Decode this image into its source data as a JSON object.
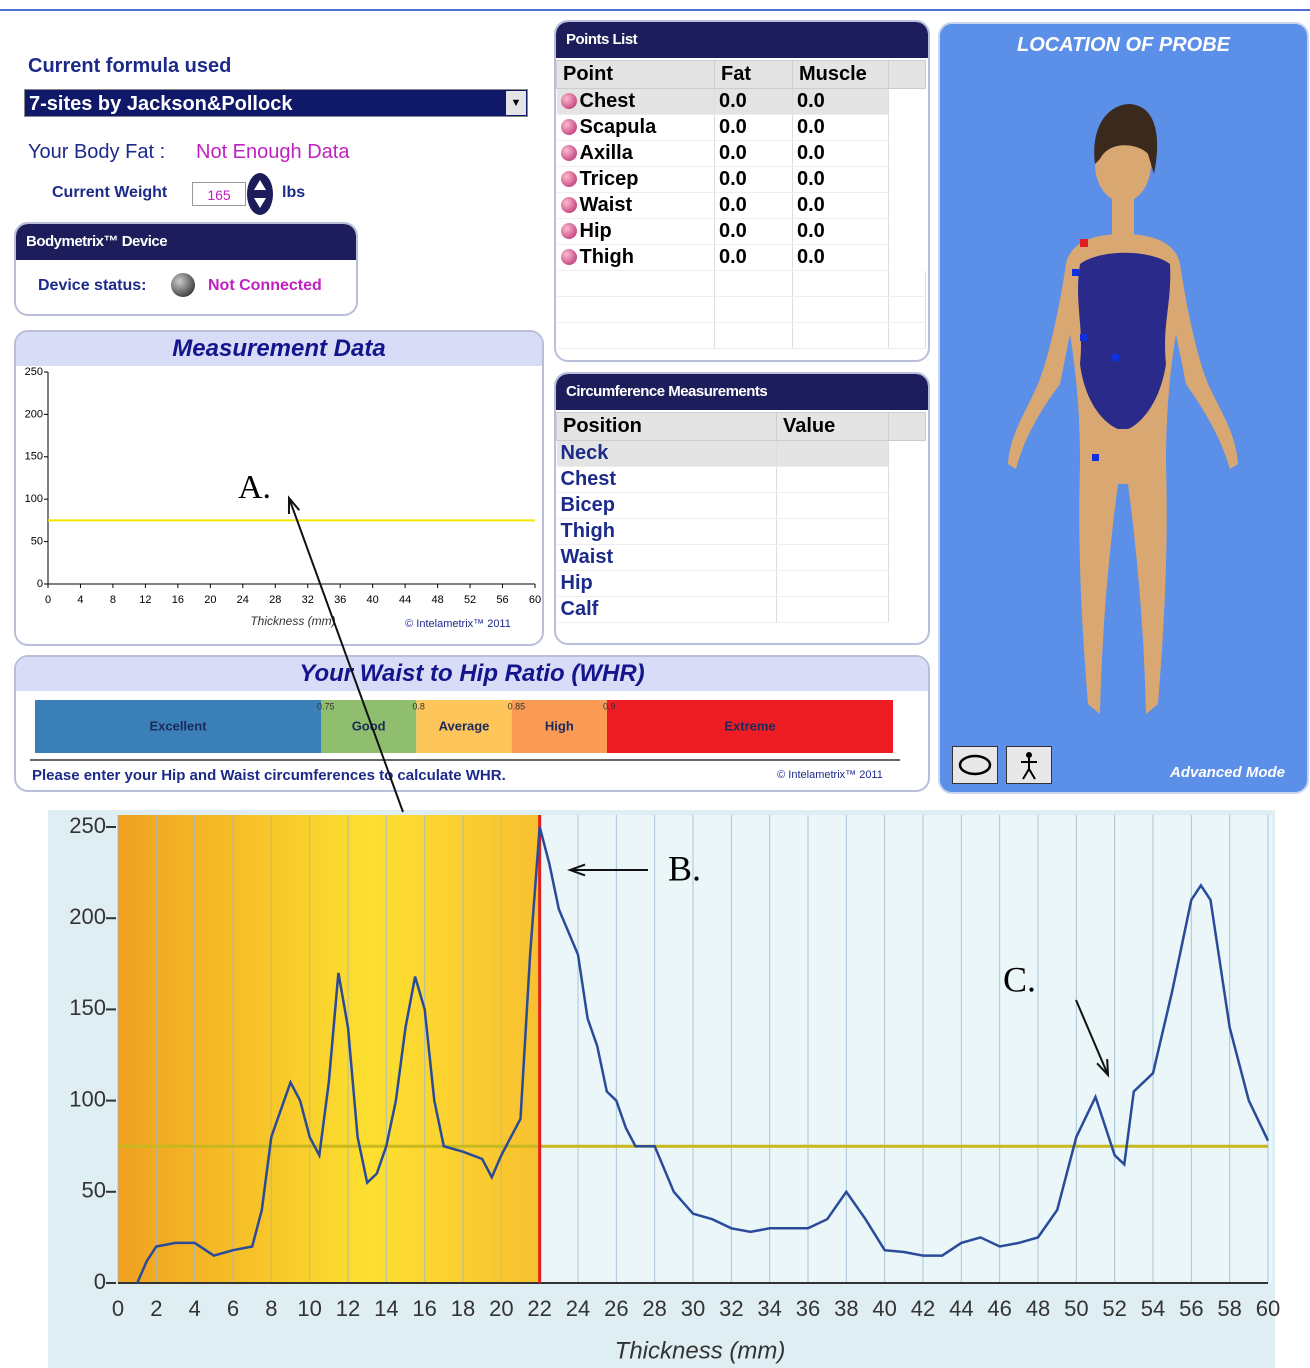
{
  "formula": {
    "label": "Current formula used",
    "selected": "7-sites by Jackson&Pollock"
  },
  "body_fat": {
    "label": "Your Body Fat :",
    "value": "Not Enough Data"
  },
  "weight": {
    "label": "Current Weight",
    "value": 165,
    "unit": "lbs"
  },
  "device": {
    "title": "Bodymetrix™ Device",
    "status_label": "Device status:",
    "status": "Not Connected"
  },
  "points_list": {
    "title": "Points List",
    "columns": [
      "Point",
      "Fat",
      "Muscle"
    ],
    "rows": [
      [
        "Chest",
        "0.0",
        "0.0"
      ],
      [
        "Scapula",
        "0.0",
        "0.0"
      ],
      [
        "Axilla",
        "0.0",
        "0.0"
      ],
      [
        "Tricep",
        "0.0",
        "0.0"
      ],
      [
        "Waist",
        "0.0",
        "0.0"
      ],
      [
        "Hip",
        "0.0",
        "0.0"
      ],
      [
        "Thigh",
        "0.0",
        "0.0"
      ]
    ]
  },
  "circumference": {
    "title": "Circumference Measurements",
    "columns": [
      "Position",
      "Value"
    ],
    "rows": [
      "Neck",
      "Chest",
      "Bicep",
      "Thigh",
      "Waist",
      "Hip",
      "Calf"
    ]
  },
  "probe": {
    "title": "LOCATION OF PROBE",
    "mode": "Advanced Mode"
  },
  "measurement_chart": {
    "type": "line",
    "title": "Measurement Data",
    "xlabel": "Thickness (mm)",
    "copyright": "© Intelametrix™ 2011",
    "xlim": [
      0,
      60
    ],
    "xticks": [
      0,
      4,
      8,
      12,
      16,
      20,
      24,
      28,
      32,
      36,
      40,
      44,
      48,
      52,
      56,
      60
    ],
    "ylim": [
      0,
      250
    ],
    "yticks": [
      0,
      50,
      100,
      150,
      200,
      250
    ],
    "threshold": 75,
    "threshold_color": "#f0e800",
    "annotation": "A."
  },
  "whr": {
    "title": "Your Waist to Hip Ratio (WHR)",
    "xlim": [
      0.6,
      1.05
    ],
    "segments": [
      {
        "name": "Excellent",
        "color": "#3a7fb8"
      },
      {
        "name": "Good",
        "color": "#8fbf6e"
      },
      {
        "name": "Average",
        "color": "#fdc55a"
      },
      {
        "name": "High",
        "color": "#f99a55"
      },
      {
        "name": "Extreme",
        "color": "#ee1c25"
      }
    ],
    "thresholds": [
      0.75,
      0.8,
      0.85,
      0.9
    ],
    "message": "Please enter your Hip and Waist circumferences to calculate WHR.",
    "copyright": "© Intelametrix™ 2011"
  },
  "scan_chart": {
    "type": "line",
    "xlabel": "Thickness (mm)",
    "color": "#2a4a9a",
    "x": [
      1,
      1.5,
      2,
      3,
      4,
      5,
      6,
      7,
      7.5,
      8,
      8.5,
      9,
      9.5,
      10,
      10.5,
      11,
      11.5,
      12,
      12.5,
      13,
      13.5,
      14,
      14.5,
      15,
      15.5,
      16,
      16.5,
      17,
      18,
      19,
      19.5,
      20,
      21,
      21.5,
      22,
      22.5,
      23,
      24,
      24.5,
      25,
      25.5,
      26,
      26.5,
      27,
      28,
      29,
      30,
      31,
      32,
      33,
      34,
      35,
      36,
      37,
      38,
      39,
      40,
      41,
      42,
      43,
      44,
      45,
      46,
      47,
      48,
      49,
      50,
      51,
      52,
      52.5,
      53,
      54,
      55,
      56,
      56.5,
      57,
      58,
      59,
      60
    ],
    "values": [
      0,
      12,
      20,
      22,
      22,
      15,
      18,
      20,
      40,
      80,
      95,
      110,
      100,
      80,
      70,
      110,
      170,
      140,
      80,
      55,
      60,
      75,
      100,
      140,
      168,
      150,
      100,
      75,
      72,
      68,
      58,
      70,
      90,
      180,
      250,
      230,
      205,
      180,
      145,
      130,
      105,
      100,
      85,
      75,
      75,
      50,
      38,
      35,
      30,
      28,
      30,
      30,
      30,
      35,
      50,
      35,
      18,
      17,
      15,
      15,
      22,
      25,
      20,
      22,
      25,
      40,
      80,
      102,
      70,
      65,
      105,
      115,
      160,
      210,
      218,
      210,
      140,
      100,
      78
    ],
    "xlim": [
      0,
      60
    ],
    "xticks": [
      0,
      2,
      4,
      6,
      8,
      10,
      12,
      14,
      16,
      18,
      20,
      22,
      24,
      26,
      28,
      30,
      32,
      34,
      36,
      38,
      40,
      42,
      44,
      46,
      48,
      50,
      52,
      54,
      56,
      58,
      60
    ],
    "ylim": [
      0,
      250
    ],
    "yticks": [
      0,
      50,
      100,
      150,
      200,
      250
    ],
    "threshold": 75,
    "threshold_color": "#c8b820",
    "marker": 22,
    "marker_color": "#e02020",
    "annotations": [
      "B.",
      "C."
    ]
  }
}
